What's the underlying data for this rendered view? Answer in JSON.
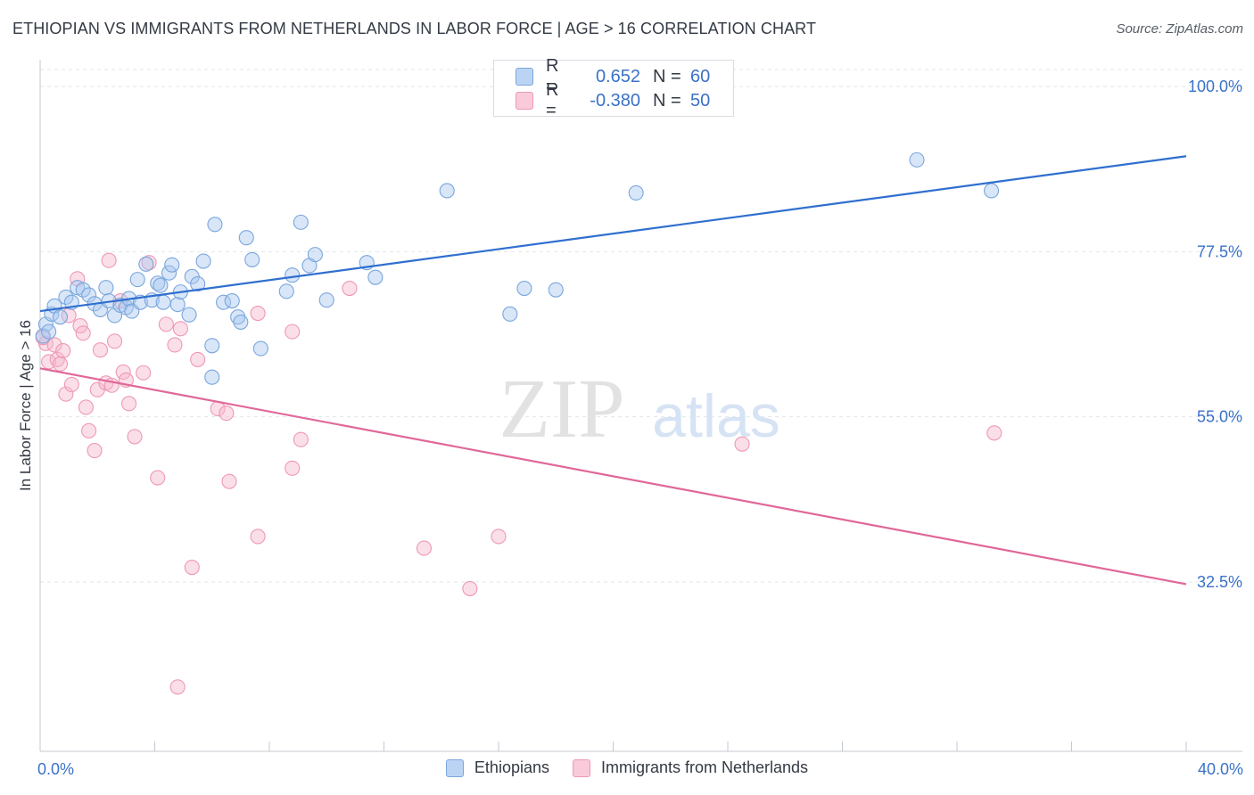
{
  "title": "ETHIOPIAN VS IMMIGRANTS FROM NETHERLANDS IN LABOR FORCE | AGE > 16 CORRELATION CHART",
  "source": "Source: ZipAtlas.com",
  "watermark": {
    "zip": "ZIP",
    "atlas": "atlas"
  },
  "legend_top": [
    {
      "r_label": "R =",
      "r_value": "0.652",
      "n_label": "N =",
      "n_value": "60",
      "color": "#a8c8f0"
    },
    {
      "r_label": "R =",
      "r_value": "-0.380",
      "n_label": "N =",
      "n_value": "50",
      "color": "#f6b8cc"
    }
  ],
  "colors": {
    "blue_fill": "#a8c8f0",
    "blue_stroke": "#7aa6dd",
    "blue_line": "#2f6fcf",
    "pink_fill": "#f6b8cc",
    "pink_stroke": "#ee98b4",
    "pink_line": "#e0679a",
    "axis_text": "#3a72c8"
  },
  "chart_data": {
    "type": "scatter",
    "title": "ETHIOPIAN VS IMMIGRANTS FROM NETHERLANDS IN LABOR FORCE | AGE > 16 CORRELATION CHART",
    "xlabel": "",
    "ylabel": "In Labor Force | Age > 16",
    "xlim": [
      0,
      40
    ],
    "ylim": [
      10,
      100
    ],
    "x_tick_labels": [
      "0.0%",
      "40.0%"
    ],
    "y_ticks": [
      32.5,
      55.0,
      77.5,
      100.0
    ],
    "y_tick_labels": [
      "32.5%",
      "55.0%",
      "77.5%",
      "100.0%"
    ],
    "grid": true,
    "legend_position": "bottom",
    "series": [
      {
        "name": "Ethiopians",
        "r": 0.652,
        "n": 60,
        "trend": [
          [
            0,
            69.4
          ],
          [
            40,
            90.5
          ]
        ],
        "points": [
          [
            0.2,
            67.6
          ],
          [
            0.4,
            69.0
          ],
          [
            0.5,
            70.1
          ],
          [
            0.7,
            68.6
          ],
          [
            0.9,
            71.3
          ],
          [
            1.1,
            70.6
          ],
          [
            1.3,
            72.6
          ],
          [
            1.5,
            72.3
          ],
          [
            1.7,
            71.6
          ],
          [
            1.9,
            70.4
          ],
          [
            2.1,
            69.6
          ],
          [
            2.3,
            72.6
          ],
          [
            2.4,
            70.8
          ],
          [
            2.6,
            68.8
          ],
          [
            2.8,
            70.2
          ],
          [
            3.0,
            69.9
          ],
          [
            3.1,
            71.1
          ],
          [
            3.2,
            69.4
          ],
          [
            3.4,
            73.7
          ],
          [
            3.5,
            70.6
          ],
          [
            3.7,
            75.8
          ],
          [
            3.9,
            70.9
          ],
          [
            4.1,
            73.2
          ],
          [
            4.2,
            72.9
          ],
          [
            4.3,
            70.6
          ],
          [
            4.5,
            74.6
          ],
          [
            4.6,
            75.7
          ],
          [
            4.8,
            70.3
          ],
          [
            4.9,
            72.0
          ],
          [
            5.2,
            68.9
          ],
          [
            5.3,
            74.1
          ],
          [
            5.5,
            73.1
          ],
          [
            5.7,
            76.2
          ],
          [
            6.0,
            64.7
          ],
          [
            6.1,
            81.2
          ],
          [
            6.4,
            70.6
          ],
          [
            6.7,
            70.8
          ],
          [
            6.9,
            68.6
          ],
          [
            7.0,
            67.9
          ],
          [
            7.2,
            79.4
          ],
          [
            7.4,
            76.4
          ],
          [
            7.7,
            64.3
          ],
          [
            8.6,
            72.1
          ],
          [
            8.8,
            74.3
          ],
          [
            9.1,
            81.5
          ],
          [
            9.4,
            75.6
          ],
          [
            9.6,
            77.1
          ],
          [
            10.0,
            70.9
          ],
          [
            11.4,
            76.0
          ],
          [
            11.7,
            74.0
          ],
          [
            14.2,
            85.8
          ],
          [
            16.4,
            69.0
          ],
          [
            16.9,
            72.5
          ],
          [
            18.0,
            72.3
          ],
          [
            20.8,
            85.5
          ],
          [
            30.6,
            90.0
          ],
          [
            33.2,
            85.8
          ],
          [
            6.0,
            60.4
          ],
          [
            0.1,
            66.0
          ],
          [
            0.3,
            66.6
          ]
        ]
      },
      {
        "name": "Immigrants from Netherlands",
        "r": -0.38,
        "n": 50,
        "trend": [
          [
            0,
            61.6
          ],
          [
            40,
            32.2
          ]
        ],
        "points": [
          [
            0.2,
            65.0
          ],
          [
            0.3,
            62.5
          ],
          [
            0.5,
            64.8
          ],
          [
            0.6,
            62.8
          ],
          [
            0.7,
            62.2
          ],
          [
            0.8,
            64.0
          ],
          [
            0.9,
            58.1
          ],
          [
            1.0,
            68.8
          ],
          [
            1.1,
            59.4
          ],
          [
            1.3,
            73.8
          ],
          [
            1.4,
            67.4
          ],
          [
            1.5,
            66.4
          ],
          [
            1.6,
            56.3
          ],
          [
            1.7,
            53.1
          ],
          [
            1.9,
            50.4
          ],
          [
            2.0,
            58.7
          ],
          [
            2.1,
            64.1
          ],
          [
            2.3,
            59.6
          ],
          [
            2.4,
            76.3
          ],
          [
            2.5,
            59.3
          ],
          [
            2.6,
            65.3
          ],
          [
            2.8,
            70.8
          ],
          [
            2.9,
            61.1
          ],
          [
            3.0,
            60.0
          ],
          [
            3.1,
            56.8
          ],
          [
            3.3,
            52.3
          ],
          [
            3.6,
            61.0
          ],
          [
            3.8,
            76.0
          ],
          [
            4.1,
            46.7
          ],
          [
            4.4,
            67.6
          ],
          [
            4.7,
            64.8
          ],
          [
            4.9,
            67.0
          ],
          [
            5.3,
            34.5
          ],
          [
            5.5,
            62.8
          ],
          [
            6.2,
            56.1
          ],
          [
            6.5,
            55.5
          ],
          [
            6.6,
            46.2
          ],
          [
            7.6,
            69.1
          ],
          [
            7.6,
            38.7
          ],
          [
            8.8,
            66.6
          ],
          [
            8.8,
            48.0
          ],
          [
            9.1,
            51.9
          ],
          [
            10.8,
            72.5
          ],
          [
            13.4,
            37.1
          ],
          [
            15.0,
            31.6
          ],
          [
            16.0,
            38.7
          ],
          [
            24.5,
            51.3
          ],
          [
            33.3,
            52.8
          ],
          [
            4.8,
            18.2
          ],
          [
            0.1,
            65.8
          ]
        ]
      }
    ]
  }
}
